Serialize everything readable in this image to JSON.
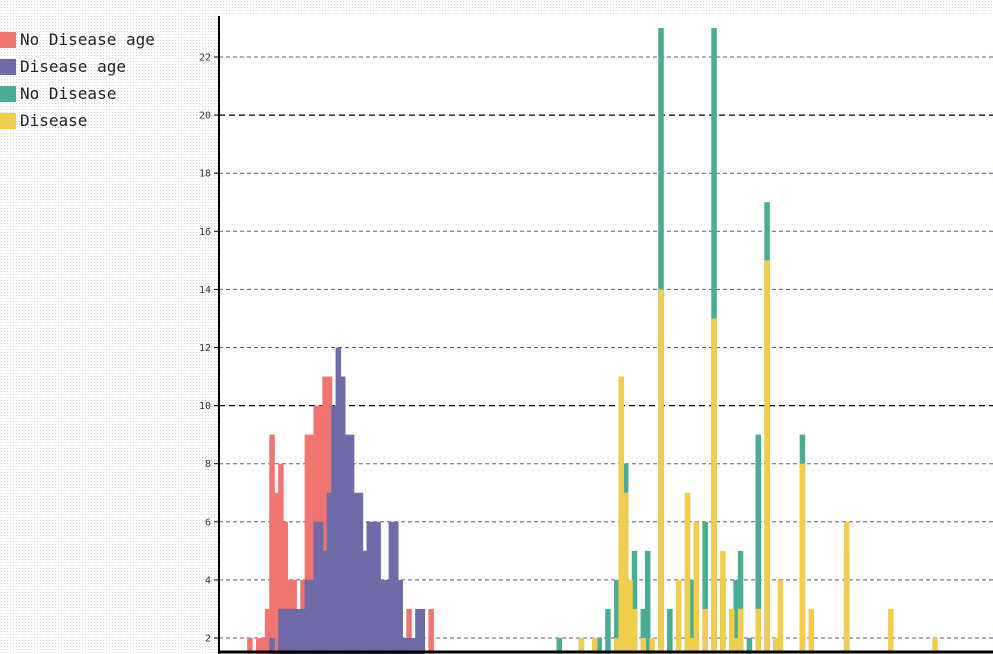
{
  "chart_data": {
    "type": "bar",
    "title": "",
    "xlabel": "",
    "ylabel": "",
    "ylim": [
      1.5,
      23.5
    ],
    "y_ticks": [
      2,
      4,
      6,
      8,
      10,
      12,
      14,
      16,
      18,
      20,
      22
    ],
    "major_gridlines": [
      10,
      20
    ],
    "grid": true,
    "x_tick_labels_visible": false,
    "legend_position": "top-left",
    "series": [
      {
        "name": "No Disease age",
        "color": "#f07470",
        "x": [
          35,
          37,
          38,
          39,
          40,
          41,
          42,
          43,
          44,
          45,
          46,
          47,
          48,
          49,
          50,
          51,
          52,
          53,
          54,
          55,
          56,
          57,
          58,
          59,
          60,
          61,
          62,
          63,
          64,
          65,
          66,
          67,
          68,
          69,
          70,
          71,
          74,
          76
        ],
        "values": [
          2,
          2,
          2,
          3,
          9,
          7,
          8,
          6,
          4,
          4,
          3,
          4,
          9,
          9,
          10,
          10,
          11,
          11,
          9,
          9,
          9,
          6,
          6,
          6,
          5,
          5,
          4,
          4,
          3,
          3,
          3,
          2,
          2,
          2,
          2,
          3,
          2,
          3
        ]
      },
      {
        "name": "Disease age",
        "color": "#6f6ba6",
        "x": [
          37,
          40,
          42,
          43,
          44,
          45,
          46,
          47,
          48,
          49,
          50,
          51,
          52,
          53,
          54,
          55,
          56,
          57,
          58,
          59,
          60,
          61,
          62,
          63,
          64,
          65,
          66,
          67,
          68,
          69,
          70,
          71,
          72,
          73,
          74
        ],
        "values": [
          1,
          2,
          3,
          3,
          3,
          3,
          3,
          3,
          4,
          4,
          6,
          6,
          5,
          7,
          10,
          12,
          11,
          9,
          9,
          7,
          7,
          5,
          6,
          6,
          6,
          4,
          4,
          6,
          6,
          4,
          2,
          2,
          2,
          3,
          3
        ]
      },
      {
        "name": "No Disease",
        "color": "#4aac92",
        "x": [
          105,
          110,
          112,
          114,
          116,
          118,
          120,
          122,
          124,
          125,
          126,
          128,
          130,
          132,
          134,
          135,
          136,
          138,
          140,
          142,
          144,
          145,
          146,
          148,
          150,
          152,
          154,
          155,
          156,
          158,
          160,
          165,
          170,
          172,
          174
        ],
        "values": [
          2,
          2,
          1,
          2,
          3,
          4,
          8,
          5,
          3,
          5,
          1,
          23,
          3,
          2,
          4,
          4,
          2,
          6,
          23,
          4,
          3,
          4,
          5,
          2,
          9,
          17,
          2,
          2,
          1,
          1,
          9,
          1,
          5,
          1,
          1
        ]
      },
      {
        "name": "Disease",
        "color": "#f1cd4e",
        "x": [
          110,
          113,
          118,
          119,
          120,
          121,
          122,
          124,
          126,
          128,
          130,
          132,
          134,
          135,
          136,
          138,
          140,
          142,
          144,
          145,
          146,
          148,
          150,
          152,
          154,
          155,
          160,
          162,
          170,
          180,
          190
        ],
        "values": [
          2,
          2,
          2,
          11,
          7,
          4,
          3,
          2,
          2,
          14,
          1,
          4,
          7,
          2,
          6,
          3,
          13,
          5,
          3,
          2,
          3,
          1,
          3,
          15,
          2,
          4,
          8,
          3,
          6,
          3,
          2
        ]
      }
    ]
  }
}
